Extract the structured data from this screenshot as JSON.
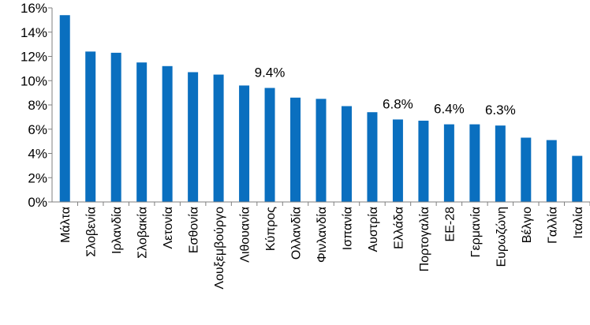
{
  "chart_data": {
    "type": "bar",
    "title": "",
    "xlabel": "",
    "ylabel": "",
    "ylim": [
      0,
      16
    ],
    "yticks": [
      "0%",
      "2%",
      "4%",
      "6%",
      "8%",
      "10%",
      "12%",
      "14%",
      "16%"
    ],
    "y_unit": "%",
    "grid": false,
    "legend": "none",
    "bar_color": "#0A6FBF",
    "categories": [
      "Μάλτα",
      "Σλοβενία",
      "Ιρλανδία",
      "Σλοβακία",
      "Λετονία",
      "Εσθονία",
      "Λουξεμβούργο",
      "Λιθουανία",
      "Κύπρος",
      "Ολλανδία",
      "Φινλανδία",
      "Ισπανία",
      "Αυστρία",
      "Ελλάδα",
      "Πορτογαλία",
      "ΕΕ-28",
      "Γερμανία",
      "Ευρωζώνη",
      "Βέλγιο",
      "Γαλλία",
      "Ιταλία"
    ],
    "values": [
      15.4,
      12.4,
      12.3,
      11.5,
      11.2,
      10.7,
      10.5,
      9.6,
      9.4,
      8.6,
      8.5,
      7.9,
      7.4,
      6.8,
      6.7,
      6.4,
      6.4,
      6.3,
      5.3,
      5.1,
      3.8
    ],
    "annotations": [
      {
        "category": "Κύπρος",
        "text": "9.4%"
      },
      {
        "category": "Ελλάδα",
        "text": "6.8%"
      },
      {
        "category": "ΕΕ-28",
        "text": "6.4%"
      },
      {
        "category": "Ευρωζώνη",
        "text": "6.3%"
      }
    ]
  }
}
